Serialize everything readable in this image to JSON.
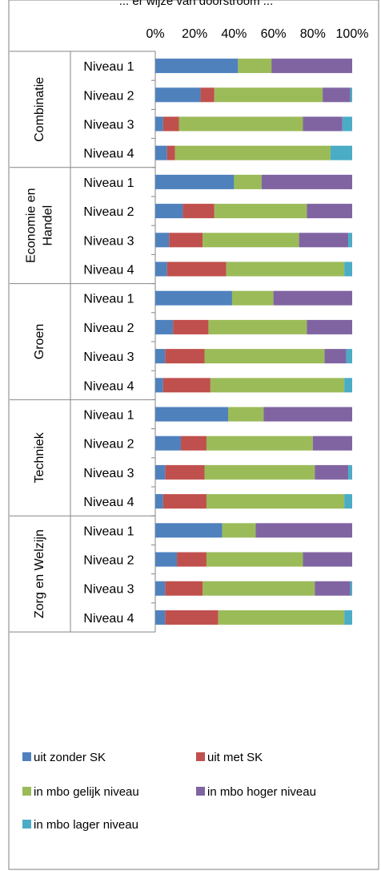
{
  "chart_data": {
    "type": "bar",
    "orientation": "horizontal",
    "stacked": "percent",
    "title": "... er wijze van doorstroom ...",
    "xlim": [
      0,
      100
    ],
    "x_ticks": [
      "0%",
      "20%",
      "40%",
      "60%",
      "80%",
      "100%"
    ],
    "grid": false,
    "legend_position": "bottom",
    "groups": [
      {
        "name": "Combinatie",
        "label_lines": [
          "Combinatie"
        ],
        "categories": [
          "Niveau 1",
          "Niveau 2",
          "Niveau 3",
          "Niveau 4"
        ]
      },
      {
        "name": "Economie en Handel",
        "label_lines": [
          "Economie en",
          "Handel"
        ],
        "categories": [
          "Niveau 1",
          "Niveau 2",
          "Niveau 3",
          "Niveau 4"
        ]
      },
      {
        "name": "Groen",
        "label_lines": [
          "Groen"
        ],
        "categories": [
          "Niveau 1",
          "Niveau 2",
          "Niveau 3",
          "Niveau 4"
        ]
      },
      {
        "name": "Techniek",
        "label_lines": [
          "Techniek"
        ],
        "categories": [
          "Niveau 1",
          "Niveau 2",
          "Niveau 3",
          "Niveau 4"
        ]
      },
      {
        "name": "Zorg en Welzijn",
        "label_lines": [
          "Zorg en Welzijn"
        ],
        "categories": [
          "Niveau 1",
          "Niveau 2",
          "Niveau 3",
          "Niveau 4"
        ]
      }
    ],
    "series": [
      {
        "name": "uit zonder SK",
        "color": "#4F81BD",
        "values": [
          42,
          23,
          4,
          6,
          40,
          14,
          7,
          6,
          39,
          9,
          5,
          4,
          37,
          13,
          5,
          4,
          34,
          11,
          5,
          5
        ]
      },
      {
        "name": "uit met SK",
        "color": "#C0504D",
        "values": [
          0,
          7,
          8,
          4,
          0,
          16,
          17,
          30,
          0,
          18,
          20,
          24,
          0,
          13,
          20,
          22,
          0,
          15,
          19,
          27
        ]
      },
      {
        "name": "in mbo gelijk niveau",
        "color": "#9BBB59",
        "values": [
          17,
          55,
          63,
          79,
          14,
          47,
          49,
          60,
          21,
          50,
          61,
          68,
          18,
          54,
          56,
          70,
          17,
          49,
          57,
          64
        ]
      },
      {
        "name": "in mbo hoger niveau",
        "color": "#8064A2",
        "values": [
          41,
          14,
          20,
          0,
          46,
          23,
          25,
          0,
          40,
          23,
          11,
          0,
          45,
          20,
          17,
          0,
          49,
          25,
          18,
          0
        ]
      },
      {
        "name": "in mbo lager niveau",
        "color": "#4BACC6",
        "values": [
          0,
          1,
          5,
          11,
          0,
          0,
          2,
          4,
          0,
          0,
          3,
          4,
          0,
          0,
          2,
          4,
          0,
          0,
          1,
          4
        ]
      }
    ]
  }
}
